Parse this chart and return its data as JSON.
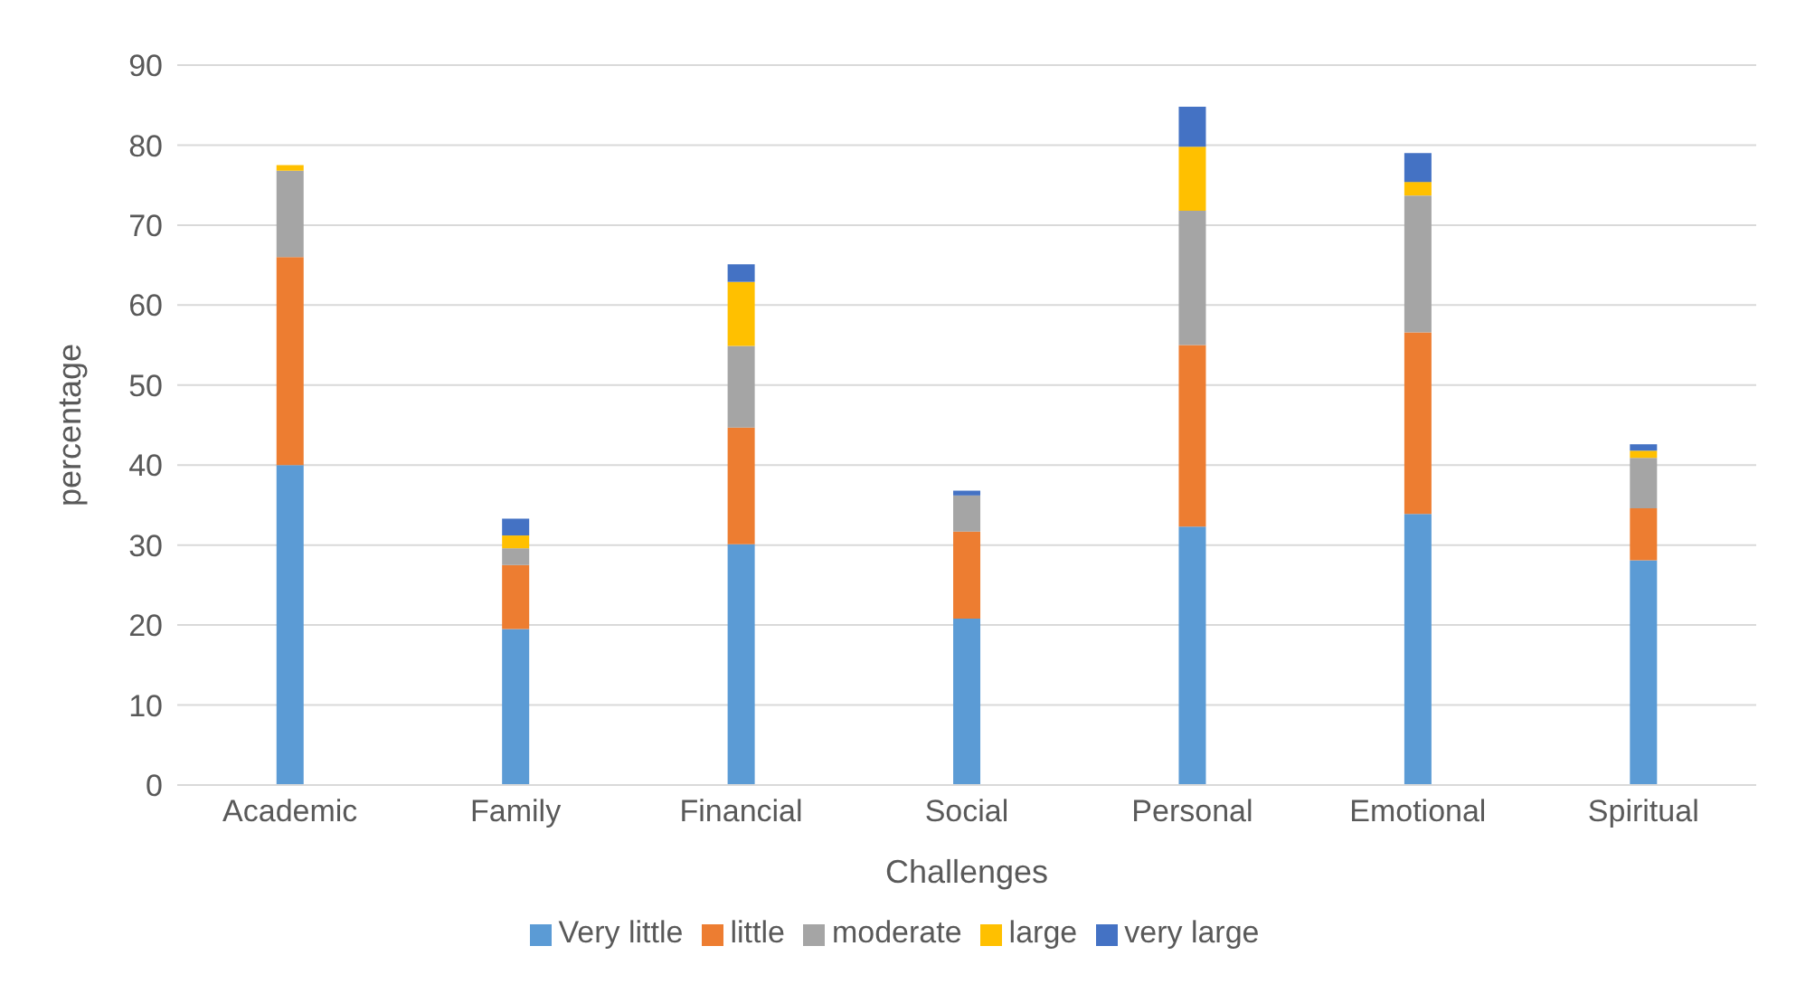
{
  "chart_data": {
    "type": "bar",
    "stacked": true,
    "xlabel": "Challenges",
    "ylabel": "percentage",
    "categories": [
      "Academic",
      "Family",
      "Financial",
      "Social",
      "Personal",
      "Emotional",
      "Spiritual"
    ],
    "series": [
      {
        "name": "Very little",
        "color": "#5b9bd5",
        "values": [
          40,
          19.5,
          30.1,
          20.8,
          32.3,
          33.9,
          28.1
        ]
      },
      {
        "name": "little",
        "color": "#ed7d31",
        "values": [
          26,
          8,
          14.6,
          10.9,
          22.7,
          22.7,
          6.5
        ]
      },
      {
        "name": "moderate",
        "color": "#a5a5a5",
        "values": [
          10.8,
          2.1,
          10.2,
          4.5,
          16.8,
          17.1,
          6.3
        ]
      },
      {
        "name": "large",
        "color": "#ffc000",
        "values": [
          0.7,
          1.6,
          8,
          0,
          8,
          1.7,
          0.9
        ]
      },
      {
        "name": "very large",
        "color": "#4472c4",
        "values": [
          0,
          2.1,
          2.2,
          0.6,
          5,
          3.6,
          0.8
        ]
      }
    ],
    "ylim": [
      0,
      90
    ],
    "yticks": [
      0,
      10,
      20,
      30,
      40,
      50,
      60,
      70,
      80,
      90
    ],
    "grid": "y",
    "legend": "bottom"
  }
}
